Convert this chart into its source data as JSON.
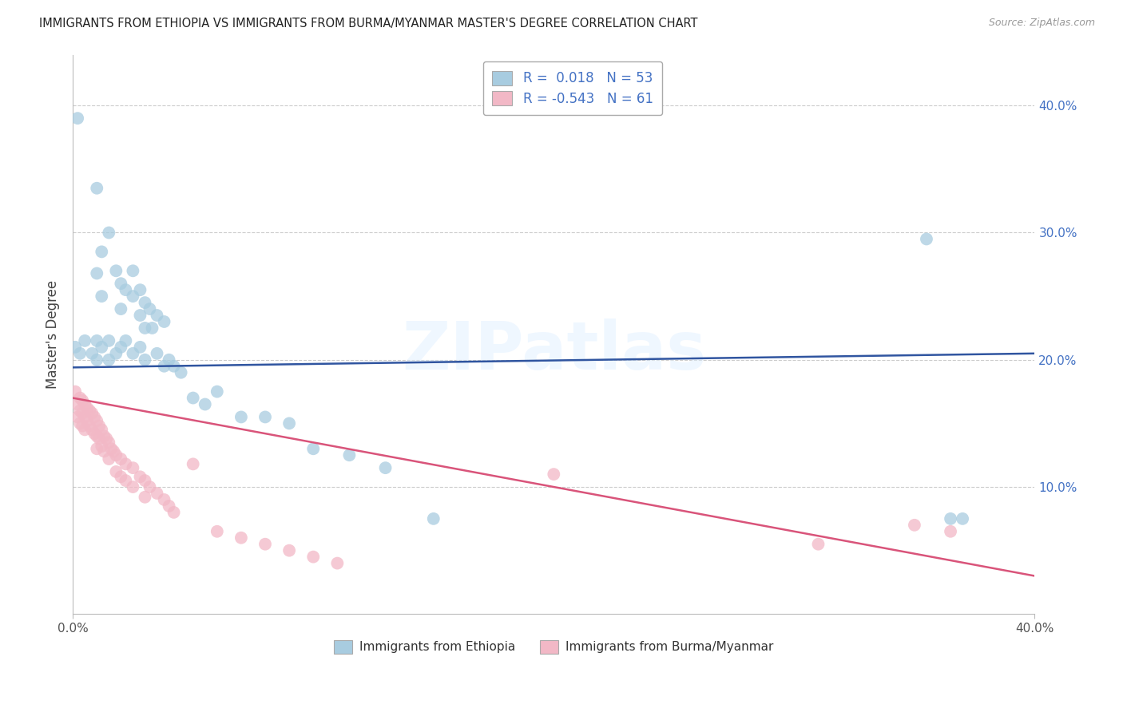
{
  "title": "IMMIGRANTS FROM ETHIOPIA VS IMMIGRANTS FROM BURMA/MYANMAR MASTER'S DEGREE CORRELATION CHART",
  "source": "Source: ZipAtlas.com",
  "ylabel": "Master's Degree",
  "xlim": [
    0.0,
    0.4
  ],
  "ylim": [
    0.0,
    0.44
  ],
  "yticks": [
    0.1,
    0.2,
    0.3,
    0.4
  ],
  "ytick_labels": [
    "10.0%",
    "20.0%",
    "30.0%",
    "40.0%"
  ],
  "ethiopia_color": "#a8cce0",
  "burma_color": "#f2b8c6",
  "ethiopia_R": 0.018,
  "ethiopia_N": 53,
  "burma_R": -0.543,
  "burma_N": 61,
  "ethiopia_line_color": "#3055a0",
  "burma_line_color": "#d9547a",
  "legend_label_color": "#4472c4",
  "watermark": "ZIPatlas",
  "ethiopia_line_x": [
    0.0,
    0.4
  ],
  "ethiopia_line_y": [
    0.194,
    0.205
  ],
  "burma_line_x": [
    0.0,
    0.4
  ],
  "burma_line_y": [
    0.17,
    0.03
  ],
  "ethiopia_scatter": [
    [
      0.002,
      0.39
    ],
    [
      0.01,
      0.335
    ],
    [
      0.012,
      0.285
    ],
    [
      0.01,
      0.268
    ],
    [
      0.015,
      0.3
    ],
    [
      0.018,
      0.27
    ],
    [
      0.012,
      0.25
    ],
    [
      0.02,
      0.26
    ],
    [
      0.022,
      0.255
    ],
    [
      0.02,
      0.24
    ],
    [
      0.025,
      0.27
    ],
    [
      0.025,
      0.25
    ],
    [
      0.028,
      0.255
    ],
    [
      0.03,
      0.245
    ],
    [
      0.028,
      0.235
    ],
    [
      0.032,
      0.24
    ],
    [
      0.03,
      0.225
    ],
    [
      0.035,
      0.235
    ],
    [
      0.033,
      0.225
    ],
    [
      0.038,
      0.23
    ],
    [
      0.001,
      0.21
    ],
    [
      0.003,
      0.205
    ],
    [
      0.005,
      0.215
    ],
    [
      0.008,
      0.205
    ],
    [
      0.01,
      0.215
    ],
    [
      0.01,
      0.2
    ],
    [
      0.012,
      0.21
    ],
    [
      0.015,
      0.215
    ],
    [
      0.015,
      0.2
    ],
    [
      0.018,
      0.205
    ],
    [
      0.02,
      0.21
    ],
    [
      0.022,
      0.215
    ],
    [
      0.025,
      0.205
    ],
    [
      0.028,
      0.21
    ],
    [
      0.03,
      0.2
    ],
    [
      0.035,
      0.205
    ],
    [
      0.038,
      0.195
    ],
    [
      0.04,
      0.2
    ],
    [
      0.042,
      0.195
    ],
    [
      0.045,
      0.19
    ],
    [
      0.05,
      0.17
    ],
    [
      0.055,
      0.165
    ],
    [
      0.06,
      0.175
    ],
    [
      0.07,
      0.155
    ],
    [
      0.08,
      0.155
    ],
    [
      0.09,
      0.15
    ],
    [
      0.1,
      0.13
    ],
    [
      0.115,
      0.125
    ],
    [
      0.13,
      0.115
    ],
    [
      0.15,
      0.075
    ],
    [
      0.355,
      0.295
    ],
    [
      0.365,
      0.075
    ],
    [
      0.37,
      0.075
    ]
  ],
  "burma_scatter": [
    [
      0.001,
      0.175
    ],
    [
      0.002,
      0.165
    ],
    [
      0.002,
      0.155
    ],
    [
      0.003,
      0.17
    ],
    [
      0.003,
      0.16
    ],
    [
      0.003,
      0.15
    ],
    [
      0.004,
      0.168
    ],
    [
      0.004,
      0.158
    ],
    [
      0.004,
      0.148
    ],
    [
      0.005,
      0.165
    ],
    [
      0.005,
      0.155
    ],
    [
      0.005,
      0.145
    ],
    [
      0.006,
      0.162
    ],
    [
      0.006,
      0.152
    ],
    [
      0.007,
      0.16
    ],
    [
      0.007,
      0.148
    ],
    [
      0.008,
      0.158
    ],
    [
      0.008,
      0.145
    ],
    [
      0.009,
      0.155
    ],
    [
      0.009,
      0.142
    ],
    [
      0.01,
      0.152
    ],
    [
      0.01,
      0.14
    ],
    [
      0.01,
      0.13
    ],
    [
      0.011,
      0.148
    ],
    [
      0.011,
      0.138
    ],
    [
      0.012,
      0.145
    ],
    [
      0.012,
      0.132
    ],
    [
      0.013,
      0.14
    ],
    [
      0.013,
      0.128
    ],
    [
      0.014,
      0.138
    ],
    [
      0.015,
      0.135
    ],
    [
      0.015,
      0.122
    ],
    [
      0.016,
      0.13
    ],
    [
      0.017,
      0.128
    ],
    [
      0.018,
      0.125
    ],
    [
      0.018,
      0.112
    ],
    [
      0.02,
      0.122
    ],
    [
      0.02,
      0.108
    ],
    [
      0.022,
      0.118
    ],
    [
      0.022,
      0.105
    ],
    [
      0.025,
      0.115
    ],
    [
      0.025,
      0.1
    ],
    [
      0.028,
      0.108
    ],
    [
      0.03,
      0.105
    ],
    [
      0.03,
      0.092
    ],
    [
      0.032,
      0.1
    ],
    [
      0.035,
      0.095
    ],
    [
      0.038,
      0.09
    ],
    [
      0.04,
      0.085
    ],
    [
      0.042,
      0.08
    ],
    [
      0.05,
      0.118
    ],
    [
      0.06,
      0.065
    ],
    [
      0.07,
      0.06
    ],
    [
      0.08,
      0.055
    ],
    [
      0.09,
      0.05
    ],
    [
      0.1,
      0.045
    ],
    [
      0.11,
      0.04
    ],
    [
      0.2,
      0.11
    ],
    [
      0.31,
      0.055
    ],
    [
      0.35,
      0.07
    ],
    [
      0.365,
      0.065
    ]
  ]
}
